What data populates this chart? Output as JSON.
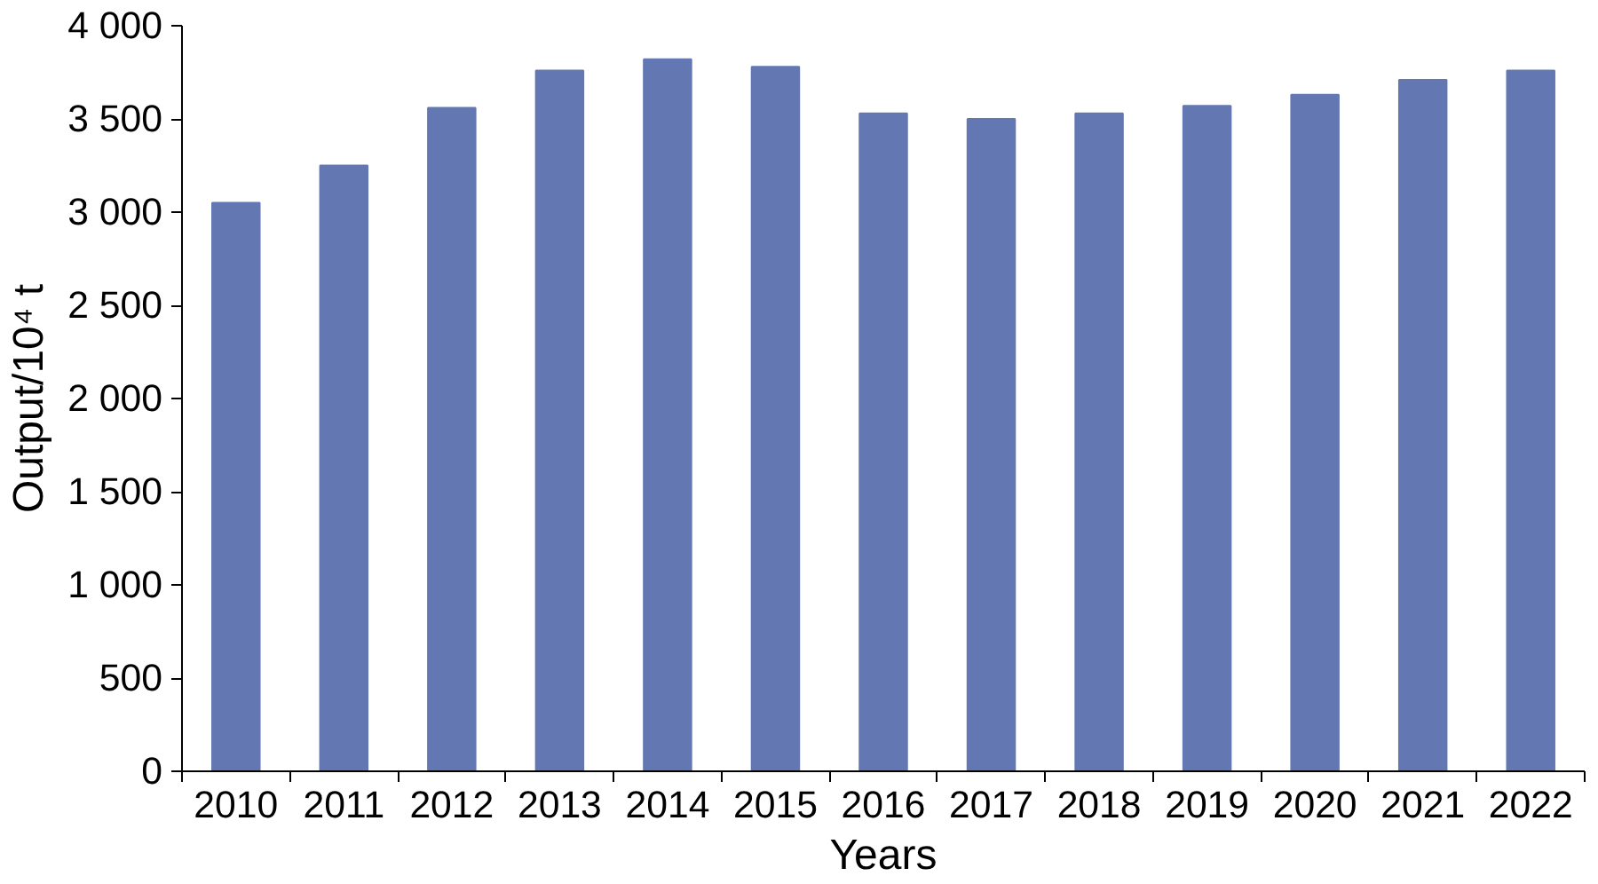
{
  "chart_data": {
    "type": "bar",
    "xlabel": "Years",
    "ylabel": "Output/10⁴ t",
    "categories": [
      "2010",
      "2011",
      "2012",
      "2013",
      "2014",
      "2015",
      "2016",
      "2017",
      "2018",
      "2019",
      "2020",
      "2021",
      "2022"
    ],
    "values": [
      3050,
      3250,
      3560,
      3760,
      3820,
      3780,
      3530,
      3500,
      3530,
      3570,
      3630,
      3710,
      3760
    ],
    "color": "#6378b2",
    "ylim": [
      0,
      4000
    ],
    "yticks": [
      0,
      500,
      {
        "value": 1000,
        "label": "1 000"
      },
      {
        "value": 1500,
        "label": "1 500"
      },
      {
        "value": 2000,
        "label": "2 000"
      },
      {
        "value": 2500,
        "label": "2 500"
      },
      {
        "value": 3000,
        "label": "3 000"
      },
      {
        "value": 3500,
        "label": "3 500"
      },
      {
        "value": 4000,
        "label": "4 000"
      }
    ],
    "grid": false
  }
}
